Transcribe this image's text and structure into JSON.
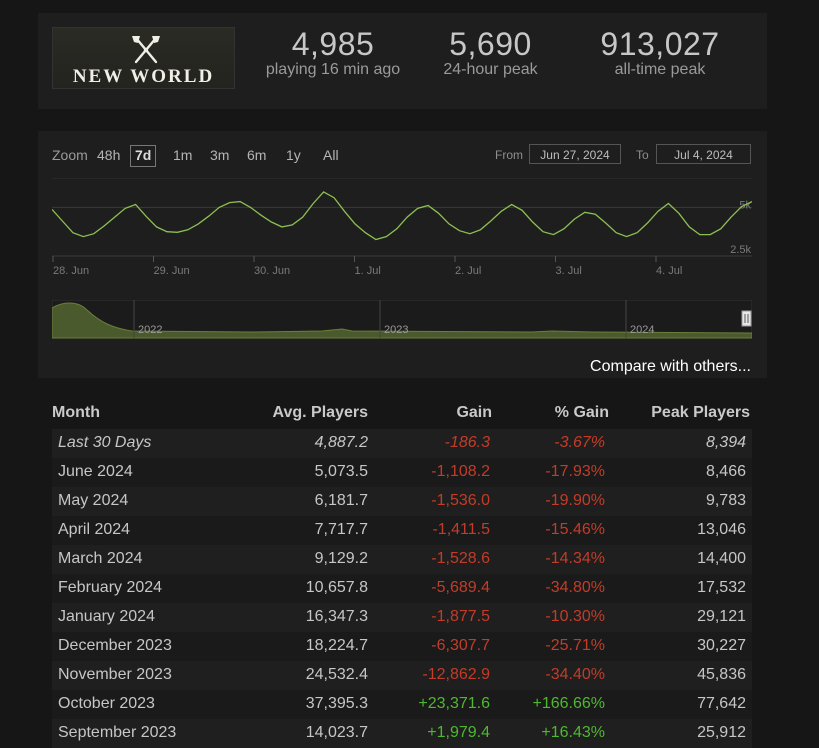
{
  "stats": {
    "logo_text": "NEW WORLD",
    "current": {
      "value": "4,985",
      "label": "playing 16 min ago"
    },
    "peak24": {
      "value": "5,690",
      "label": "24-hour peak"
    },
    "alltime": {
      "value": "913,027",
      "label": "all-time peak"
    }
  },
  "chart": {
    "zoom_label": "Zoom",
    "zoom_options": [
      "48h",
      "7d",
      "1m",
      "3m",
      "6m",
      "1y",
      "All"
    ],
    "zoom_active": "7d",
    "from_label": "From",
    "from_value": "Jun 27, 2024",
    "to_label": "To",
    "to_value": "Jul 4, 2024",
    "compare_label": "Compare with others...",
    "colors": {
      "line": "#8cc051",
      "nav_fill": "#4a5a2c",
      "grid": "#3a3a3a"
    }
  },
  "chart_data": {
    "type": "line",
    "x_ticks": [
      "28. Jun",
      "29. Jun",
      "30. Jun",
      "1. Jul",
      "2. Jul",
      "3. Jul",
      "4. Jul"
    ],
    "y_ticks": [
      "5k",
      "2.5k"
    ],
    "navigator_ticks": [
      "2022",
      "2023",
      "2024"
    ],
    "series": [
      {
        "values": [
          4900,
          4300,
          3700,
          3500,
          3650,
          4050,
          4500,
          4950,
          5150,
          4550,
          4000,
          3750,
          3720,
          3850,
          4150,
          4550,
          5000,
          5250,
          5300,
          5000,
          4600,
          4250,
          4000,
          4100,
          4500,
          5200,
          5800,
          5500,
          4800,
          4150,
          3700,
          3350,
          3500,
          3900,
          4500,
          4950,
          5100,
          4700,
          4150,
          3800,
          3650,
          3850,
          4300,
          4800,
          5150,
          4850,
          4250,
          3750,
          3600,
          3900,
          4400,
          4750,
          4650,
          4200,
          3700,
          3500,
          3700,
          4200,
          4800,
          5200,
          4700,
          4000,
          3600,
          3600,
          3900,
          4500,
          5050,
          5300
        ]
      }
    ]
  },
  "table": {
    "headers": {
      "month": "Month",
      "avg": "Avg. Players",
      "gain": "Gain",
      "pct": "% Gain",
      "peak": "Peak Players"
    },
    "rows": [
      {
        "month": "Last 30 Days",
        "avg": "4,887.2",
        "gain": "-186.3",
        "pct": "-3.67%",
        "peak": "8,394",
        "trend": "neg"
      },
      {
        "month": "June 2024",
        "avg": "5,073.5",
        "gain": "-1,108.2",
        "pct": "-17.93%",
        "peak": "8,466",
        "trend": "neg"
      },
      {
        "month": "May 2024",
        "avg": "6,181.7",
        "gain": "-1,536.0",
        "pct": "-19.90%",
        "peak": "9,783",
        "trend": "neg"
      },
      {
        "month": "April 2024",
        "avg": "7,717.7",
        "gain": "-1,411.5",
        "pct": "-15.46%",
        "peak": "13,046",
        "trend": "neg"
      },
      {
        "month": "March 2024",
        "avg": "9,129.2",
        "gain": "-1,528.6",
        "pct": "-14.34%",
        "peak": "14,400",
        "trend": "neg"
      },
      {
        "month": "February 2024",
        "avg": "10,657.8",
        "gain": "-5,689.4",
        "pct": "-34.80%",
        "peak": "17,532",
        "trend": "neg"
      },
      {
        "month": "January 2024",
        "avg": "16,347.3",
        "gain": "-1,877.5",
        "pct": "-10.30%",
        "peak": "29,121",
        "trend": "neg"
      },
      {
        "month": "December 2023",
        "avg": "18,224.7",
        "gain": "-6,307.7",
        "pct": "-25.71%",
        "peak": "30,227",
        "trend": "neg"
      },
      {
        "month": "November 2023",
        "avg": "24,532.4",
        "gain": "-12,862.9",
        "pct": "-34.40%",
        "peak": "45,836",
        "trend": "neg"
      },
      {
        "month": "October 2023",
        "avg": "37,395.3",
        "gain": "+23,371.6",
        "pct": "+166.66%",
        "peak": "77,642",
        "trend": "pos"
      },
      {
        "month": "September 2023",
        "avg": "14,023.7",
        "gain": "+1,979.4",
        "pct": "+16.43%",
        "peak": "25,912",
        "trend": "pos"
      }
    ]
  }
}
